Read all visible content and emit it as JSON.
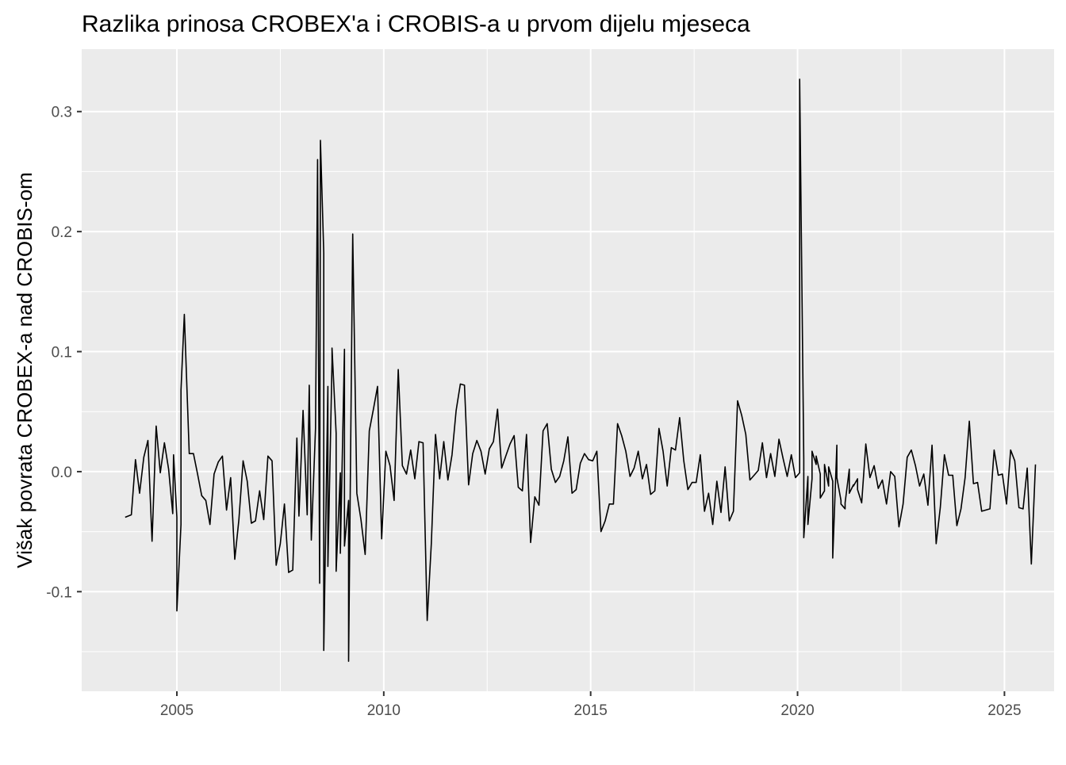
{
  "chart_data": {
    "type": "line",
    "title": "Razlika prinosa CROBEX'a i CROBIS-a u prvom dijelu mjeseca",
    "xlabel": "",
    "ylabel": "Višak povrata CROBEX-a nad CROBIS-om",
    "xlim": [
      2002.7,
      2026.2
    ],
    "ylim": [
      -0.183,
      0.352
    ],
    "x_ticks": [
      2005,
      2010,
      2015,
      2020,
      2025
    ],
    "x_tick_labels": [
      "2005",
      "2010",
      "2015",
      "2020",
      "2025"
    ],
    "y_ticks": [
      -0.1,
      0.0,
      0.1,
      0.2,
      0.3
    ],
    "y_tick_labels": [
      "-0.1",
      "0.0",
      "0.1",
      "0.2",
      "0.3"
    ],
    "grid": true,
    "legend": "none",
    "colors": {
      "panel": "#ebebeb",
      "grid": "#ffffff",
      "line": "#000000"
    },
    "series": [
      {
        "points": [
          [
            2003.75,
            -0.038
          ],
          [
            2003.9,
            -0.036
          ],
          [
            2004.0,
            0.01
          ],
          [
            2004.1,
            -0.018
          ],
          [
            2004.2,
            0.012
          ],
          [
            2004.3,
            0.026
          ],
          [
            2004.4,
            -0.058
          ],
          [
            2004.5,
            0.038
          ],
          [
            2004.6,
            -0.001
          ],
          [
            2004.7,
            0.024
          ],
          [
            2004.8,
            0.002
          ],
          [
            2004.9,
            -0.035
          ],
          [
            2005.0,
            -0.038
          ],
          [
            2005.1,
            -0.044
          ],
          [
            2004.92,
            0.014
          ],
          [
            2005.0,
            -0.116
          ],
          [
            2005.1,
            0.068
          ],
          [
            2005.18,
            0.131
          ],
          [
            2005.3,
            0.015
          ],
          [
            2005.4,
            0.015
          ],
          [
            2005.5,
            -0.002
          ],
          [
            2005.6,
            -0.02
          ],
          [
            2005.7,
            -0.024
          ],
          [
            2005.8,
            -0.044
          ],
          [
            2005.9,
            -0.002
          ],
          [
            2006.0,
            0.008
          ],
          [
            2006.1,
            0.013
          ],
          [
            2006.2,
            -0.032
          ],
          [
            2006.3,
            -0.005
          ],
          [
            2006.4,
            -0.073
          ],
          [
            2006.5,
            -0.04
          ],
          [
            2006.6,
            0.009
          ],
          [
            2006.7,
            -0.008
          ],
          [
            2006.8,
            -0.043
          ],
          [
            2006.9,
            -0.041
          ],
          [
            2007.0,
            -0.016
          ],
          [
            2007.1,
            -0.04
          ],
          [
            2007.2,
            0.013
          ],
          [
            2007.3,
            0.009
          ],
          [
            2007.4,
            -0.078
          ],
          [
            2007.5,
            -0.06
          ],
          [
            2007.6,
            -0.027
          ],
          [
            2007.7,
            -0.084
          ],
          [
            2007.8,
            -0.082
          ],
          [
            2007.9,
            0.028
          ],
          [
            2007.95,
            -0.037
          ],
          [
            2008.05,
            0.051
          ],
          [
            2008.15,
            -0.036
          ],
          [
            2008.25,
            -0.057
          ],
          [
            2008.35,
            0.036
          ],
          [
            2008.45,
            -0.093
          ],
          [
            2008.55,
            0.182
          ],
          [
            2008.65,
            0.071
          ],
          [
            2008.75,
            0.091
          ],
          [
            2008.85,
            0.032
          ],
          [
            2008.95,
            -0.001
          ],
          [
            2009.05,
            0.102
          ],
          [
            2009.15,
            -0.024
          ],
          [
            2008.2,
            0.072
          ],
          [
            2008.4,
            0.26
          ],
          [
            2008.47,
            0.276
          ],
          [
            2008.55,
            -0.149
          ],
          [
            2008.65,
            -0.079
          ],
          [
            2008.75,
            0.103
          ],
          [
            2008.85,
            -0.083
          ],
          [
            2008.95,
            -0.068
          ],
          [
            2009.05,
            -0.062
          ],
          [
            2009.15,
            -0.158
          ],
          [
            2009.25,
            0.198
          ],
          [
            2009.35,
            -0.018
          ],
          [
            2009.45,
            -0.04
          ],
          [
            2009.55,
            -0.069
          ],
          [
            2009.65,
            0.034
          ],
          [
            2009.75,
            0.052
          ],
          [
            2009.85,
            0.071
          ],
          [
            2009.95,
            -0.056
          ],
          [
            2010.05,
            0.017
          ],
          [
            2010.15,
            0.005
          ],
          [
            2010.25,
            -0.024
          ],
          [
            2010.35,
            0.085
          ],
          [
            2010.45,
            0.005
          ],
          [
            2010.55,
            -0.002
          ],
          [
            2010.65,
            0.018
          ],
          [
            2010.75,
            -0.006
          ],
          [
            2010.85,
            0.025
          ],
          [
            2010.95,
            0.024
          ],
          [
            2011.05,
            -0.124
          ],
          [
            2011.15,
            -0.06
          ],
          [
            2011.25,
            0.031
          ],
          [
            2011.35,
            -0.006
          ],
          [
            2011.45,
            0.025
          ],
          [
            2011.55,
            -0.007
          ],
          [
            2011.65,
            0.014
          ],
          [
            2011.75,
            0.051
          ],
          [
            2011.85,
            0.073
          ],
          [
            2011.95,
            0.072
          ],
          [
            2012.05,
            -0.011
          ],
          [
            2012.15,
            0.015
          ],
          [
            2012.25,
            0.026
          ],
          [
            2012.35,
            0.017
          ],
          [
            2012.45,
            -0.002
          ],
          [
            2012.55,
            0.019
          ],
          [
            2012.65,
            0.025
          ],
          [
            2012.75,
            0.052
          ],
          [
            2012.85,
            0.003
          ],
          [
            2012.95,
            0.013
          ],
          [
            2013.05,
            0.023
          ],
          [
            2013.15,
            0.03
          ],
          [
            2013.25,
            -0.013
          ],
          [
            2013.35,
            -0.016
          ],
          [
            2013.45,
            0.031
          ],
          [
            2013.55,
            -0.059
          ],
          [
            2013.65,
            -0.021
          ],
          [
            2013.75,
            -0.028
          ],
          [
            2013.85,
            0.034
          ],
          [
            2013.95,
            0.04
          ],
          [
            2014.05,
            0.002
          ],
          [
            2014.15,
            -0.009
          ],
          [
            2014.25,
            -0.004
          ],
          [
            2014.35,
            0.009
          ],
          [
            2014.45,
            0.029
          ],
          [
            2014.55,
            -0.018
          ],
          [
            2014.65,
            -0.015
          ],
          [
            2014.75,
            0.007
          ],
          [
            2014.85,
            0.015
          ],
          [
            2014.95,
            0.01
          ],
          [
            2015.05,
            0.009
          ],
          [
            2015.15,
            0.017
          ],
          [
            2015.25,
            -0.05
          ],
          [
            2015.35,
            -0.041
          ],
          [
            2015.45,
            -0.027
          ],
          [
            2015.55,
            -0.027
          ],
          [
            2015.65,
            0.04
          ],
          [
            2015.75,
            0.03
          ],
          [
            2015.85,
            0.017
          ],
          [
            2015.95,
            -0.004
          ],
          [
            2016.05,
            0.003
          ],
          [
            2016.15,
            0.017
          ],
          [
            2016.25,
            -0.006
          ],
          [
            2016.35,
            0.006
          ],
          [
            2016.45,
            -0.019
          ],
          [
            2016.55,
            -0.016
          ],
          [
            2016.65,
            0.036
          ],
          [
            2016.75,
            0.017
          ],
          [
            2016.85,
            -0.012
          ],
          [
            2016.95,
            0.02
          ],
          [
            2017.05,
            0.018
          ],
          [
            2017.15,
            0.045
          ],
          [
            2017.25,
            0.009
          ],
          [
            2017.35,
            -0.015
          ],
          [
            2017.45,
            -0.009
          ],
          [
            2017.55,
            -0.009
          ],
          [
            2017.65,
            0.014
          ],
          [
            2017.75,
            -0.033
          ],
          [
            2017.85,
            -0.018
          ],
          [
            2017.95,
            -0.044
          ],
          [
            2018.05,
            -0.008
          ],
          [
            2018.15,
            -0.034
          ],
          [
            2018.25,
            0.004
          ],
          [
            2018.35,
            -0.041
          ],
          [
            2018.45,
            -0.033
          ],
          [
            2018.55,
            0.059
          ],
          [
            2018.65,
            0.047
          ],
          [
            2018.75,
            0.031
          ],
          [
            2018.85,
            -0.007
          ],
          [
            2018.95,
            -0.003
          ],
          [
            2019.05,
            0.001
          ],
          [
            2019.15,
            0.024
          ],
          [
            2019.25,
            -0.005
          ],
          [
            2019.35,
            0.015
          ],
          [
            2019.45,
            -0.004
          ],
          [
            2019.55,
            0.027
          ],
          [
            2019.65,
            0.011
          ],
          [
            2019.75,
            -0.004
          ],
          [
            2019.85,
            0.014
          ],
          [
            2019.95,
            -0.005
          ],
          [
            2020.05,
            -0.001
          ],
          [
            2020.15,
            0.01
          ],
          [
            2020.25,
            -0.004
          ],
          [
            2020.35,
            -0.006
          ],
          [
            2020.45,
            0.006
          ],
          [
            2020.55,
            -0.002
          ],
          [
            2020.65,
            -0.016
          ],
          [
            2020.75,
            -0.012
          ],
          [
            2020.85,
            -0.008
          ],
          [
            2020.95,
            0.022
          ],
          [
            2021.05,
            -0.024
          ],
          [
            2021.15,
            -0.031
          ],
          [
            2021.25,
            0.002
          ],
          [
            2021.35,
            -0.011
          ],
          [
            2021.45,
            -0.006
          ],
          [
            2020.05,
            0.327
          ],
          [
            2020.15,
            -0.055
          ],
          [
            2020.25,
            -0.044
          ],
          [
            2020.35,
            0.017
          ],
          [
            2020.45,
            0.013
          ],
          [
            2020.55,
            -0.022
          ],
          [
            2020.65,
            0.006
          ],
          [
            2020.75,
            0.004
          ],
          [
            2020.85,
            -0.072
          ],
          [
            2020.95,
            -0.005
          ],
          [
            2021.05,
            -0.027
          ],
          [
            2021.15,
            -0.026
          ],
          [
            2021.25,
            -0.018
          ],
          [
            2021.35,
            -0.012
          ],
          [
            2021.45,
            -0.015
          ],
          [
            2021.55,
            -0.026
          ],
          [
            2021.65,
            0.023
          ],
          [
            2021.75,
            -0.005
          ],
          [
            2021.85,
            0.005
          ],
          [
            2021.95,
            -0.014
          ],
          [
            2022.05,
            -0.007
          ],
          [
            2022.15,
            -0.027
          ],
          [
            2022.25,
            0.0
          ],
          [
            2022.35,
            -0.004
          ],
          [
            2022.45,
            -0.046
          ],
          [
            2022.55,
            -0.027
          ],
          [
            2022.65,
            0.012
          ],
          [
            2022.75,
            0.018
          ],
          [
            2022.85,
            0.005
          ],
          [
            2022.95,
            -0.012
          ],
          [
            2023.05,
            -0.002
          ],
          [
            2023.15,
            -0.028
          ],
          [
            2023.25,
            0.022
          ],
          [
            2023.35,
            -0.06
          ],
          [
            2023.45,
            -0.03
          ],
          [
            2023.55,
            0.014
          ],
          [
            2023.65,
            -0.003
          ],
          [
            2023.75,
            -0.003
          ],
          [
            2023.85,
            -0.045
          ],
          [
            2023.95,
            -0.031
          ],
          [
            2024.05,
            -0.005
          ],
          [
            2024.15,
            0.042
          ],
          [
            2024.25,
            -0.01
          ],
          [
            2024.35,
            -0.009
          ],
          [
            2024.45,
            -0.033
          ],
          [
            2024.55,
            -0.032
          ],
          [
            2024.65,
            -0.031
          ],
          [
            2024.75,
            0.018
          ],
          [
            2024.85,
            -0.003
          ],
          [
            2024.95,
            -0.002
          ],
          [
            2025.05,
            -0.027
          ],
          [
            2025.15,
            0.018
          ],
          [
            2025.25,
            0.009
          ],
          [
            2025.35,
            -0.03
          ],
          [
            2025.45,
            -0.031
          ],
          [
            2025.55,
            0.003
          ],
          [
            2025.65,
            -0.077
          ],
          [
            2025.75,
            0.006
          ]
        ]
      }
    ]
  }
}
